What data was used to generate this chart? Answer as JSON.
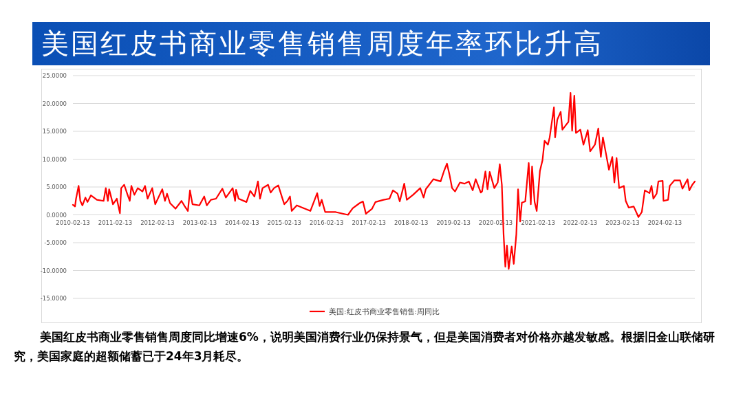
{
  "chart_data": {
    "type": "line",
    "title": "美国红皮书商业零售销售周度年率环比升高",
    "annotations": [
      "美国红皮书商业零售销售周度同比增速6%，说明美国消费行业仍保持景气，但是美国消费者对价格亦越发敏感。根据旧金山联储研究，美国家庭的超额储蓄已于24年3月耗尽。"
    ],
    "xlim": [
      "2010-02-13",
      "2024-10-29"
    ],
    "xticks": [
      "2010-02-13",
      "2011-02-13",
      "2012-02-13",
      "2013-02-13",
      "2014-02-13",
      "2015-02-13",
      "2016-02-13",
      "2017-02-13",
      "2018-02-13",
      "2019-02-13",
      "2020-02-13",
      "2021-02-13",
      "2022-02-13",
      "2023-02-13",
      "2024-02-13"
    ],
    "ylim": [
      -15,
      25
    ],
    "yticks": [
      {
        "value": -15,
        "label": "-15.0000"
      },
      {
        "value": -10,
        "label": "-10.0000"
      },
      {
        "value": -5,
        "label": "-5.0000"
      },
      {
        "value": 0,
        "label": "0.0000"
      },
      {
        "value": 5,
        "label": "5.0000"
      },
      {
        "value": 10,
        "label": "10.0000"
      },
      {
        "value": 15,
        "label": "15.0000"
      },
      {
        "value": 20,
        "label": "20.0000"
      },
      {
        "value": 25,
        "label": "25.0000"
      }
    ],
    "grid": "y",
    "legend": "bottom",
    "marker": "none",
    "line_style": "solid",
    "series": [
      {
        "name": "美国:红皮书商业零售销售:周同比",
        "color": "#ff0000",
        "x": [
          "2010-02-13",
          "2010-03-03",
          "2010-03-12",
          "2010-04-03",
          "2010-04-18",
          "2010-05-06",
          "2010-06-01",
          "2010-06-19",
          "2010-07-18",
          "2010-09-08",
          "2010-11-05",
          "2010-11-24",
          "2010-12-12",
          "2010-12-23",
          "2011-01-25",
          "2011-02-27",
          "2011-03-26",
          "2011-04-06",
          "2011-05-02",
          "2011-05-31",
          "2011-06-19",
          "2011-07-03",
          "2011-07-29",
          "2011-08-27",
          "2011-10-07",
          "2011-10-29",
          "2011-11-20",
          "2011-12-30",
          "2012-01-25",
          "2012-03-26",
          "2012-04-18",
          "2012-05-06",
          "2012-06-01",
          "2012-07-18",
          "2012-09-08",
          "2012-10-07",
          "2012-11-02",
          "2012-11-20",
          "2012-12-12",
          "2013-02-09",
          "2013-03-23",
          "2013-04-14",
          "2013-05-20",
          "2013-07-03",
          "2013-08-27",
          "2013-09-26",
          "2013-11-24",
          "2013-12-15",
          "2013-12-23",
          "2014-01-14",
          "2014-03-23",
          "2014-04-25",
          "2014-05-31",
          "2014-06-30",
          "2014-07-18",
          "2014-08-09",
          "2014-09-26",
          "2014-10-18",
          "2014-11-16",
          "2014-12-23",
          "2015-01-25",
          "2015-02-13",
          "2015-03-12",
          "2015-04-03",
          "2015-04-18",
          "2015-06-01",
          "2015-07-18",
          "2015-09-26",
          "2015-11-24",
          "2015-12-15",
          "2016-01-02",
          "2016-02-01",
          "2016-05-02",
          "2016-08-16",
          "2016-09-26",
          "2016-11-24",
          "2016-12-23",
          "2017-01-18",
          "2017-03-12",
          "2017-04-10",
          "2017-06-19",
          "2017-08-09",
          "2017-09-08",
          "2017-10-18",
          "2017-11-06",
          "2017-12-15",
          "2018-01-06",
          "2018-03-01",
          "2018-05-02",
          "2018-05-31",
          "2018-06-19",
          "2018-08-24",
          "2018-10-25",
          "2018-11-24",
          "2018-12-19",
          "2019-01-10",
          "2019-02-01",
          "2019-02-27",
          "2019-04-10",
          "2019-05-20",
          "2019-06-26",
          "2019-07-29",
          "2019-08-24",
          "2019-10-07",
          "2019-10-18",
          "2019-11-16",
          "2019-12-04",
          "2019-12-23",
          "2020-02-01",
          "2020-03-01",
          "2020-03-19",
          "2020-04-06",
          "2020-04-21",
          "2020-05-06",
          "2020-05-20",
          "2020-06-04",
          "2020-06-30",
          "2020-07-18",
          "2020-08-09",
          "2020-08-24",
          "2020-09-11",
          "2020-09-26",
          "2020-10-25",
          "2020-11-24",
          "2020-12-12",
          "2020-12-23",
          "2021-01-14",
          "2021-02-01",
          "2021-03-01",
          "2021-03-23",
          "2021-04-10",
          "2021-05-09",
          "2021-05-24",
          "2021-06-30",
          "2021-07-10",
          "2021-07-29",
          "2021-08-27",
          "2021-09-11",
          "2021-10-07",
          "2021-11-02",
          "2021-11-20",
          "2021-12-04",
          "2021-12-23",
          "2022-01-06",
          "2022-02-13",
          "2022-03-12",
          "2022-04-03",
          "2022-04-18",
          "2022-05-09",
          "2022-06-19",
          "2022-07-18",
          "2022-08-09",
          "2022-08-27",
          "2022-09-26",
          "2022-10-18",
          "2022-11-16",
          "2022-12-04",
          "2022-12-23",
          "2023-01-14",
          "2023-02-24",
          "2023-03-12",
          "2023-04-07",
          "2023-05-20",
          "2023-06-30",
          "2023-07-29",
          "2023-08-24",
          "2023-10-03",
          "2023-10-21",
          "2023-11-06",
          "2023-12-04",
          "2023-12-19",
          "2024-01-25",
          "2024-02-01",
          "2024-03-12",
          "2024-03-26",
          "2024-05-06",
          "2024-06-23",
          "2024-07-14",
          "2024-08-27",
          "2024-09-11",
          "2024-10-07",
          "2024-10-29"
        ],
        "values": [
          1.8,
          1.5,
          2.9,
          5.2,
          2.5,
          1.7,
          3.1,
          2.3,
          3.5,
          2.7,
          2.5,
          4.8,
          2.5,
          4.6,
          1.9,
          2.9,
          0.3,
          4.8,
          5.4,
          3.6,
          2.5,
          5.2,
          3.6,
          4.8,
          4.2,
          5.2,
          2.9,
          4.8,
          1.9,
          4.6,
          2.5,
          3.8,
          2.1,
          1.1,
          2.5,
          1.5,
          0.7,
          4.4,
          1.9,
          1.7,
          3.3,
          1.7,
          2.7,
          2.9,
          4.7,
          3.1,
          4.8,
          2.5,
          4.5,
          2.9,
          2.3,
          4.3,
          3.3,
          6.0,
          2.9,
          4.8,
          5.4,
          4.0,
          4.8,
          5.3,
          3.1,
          1.9,
          2.5,
          3.3,
          0.7,
          1.7,
          1.3,
          0.7,
          3.9,
          1.6,
          2.7,
          0.5,
          0.5,
          0.0,
          1.2,
          2.1,
          2.4,
          0.2,
          1.1,
          2.3,
          2.7,
          2.9,
          4.4,
          3.8,
          2.4,
          5.6,
          2.7,
          3.6,
          4.8,
          3.1,
          4.6,
          6.4,
          6.0,
          7.9,
          9.2,
          7.2,
          4.8,
          4.2,
          5.8,
          5.6,
          6.0,
          4.4,
          6.4,
          4.0,
          4.2,
          7.8,
          4.6,
          7.7,
          4.8,
          5.8,
          9.1,
          5.4,
          -3.5,
          -9.3,
          -5.5,
          -9.7,
          -5.7,
          -8.8,
          -3.5,
          4.6,
          -1.2,
          2.2,
          2.4,
          9.3,
          1.9,
          8.7,
          2.3,
          0.7,
          7.9,
          9.8,
          13.3,
          12.6,
          13.9,
          19.3,
          13.9,
          17.1,
          18.5,
          15.3,
          16.0,
          16.7,
          21.9,
          15.1,
          21.4,
          14.7,
          15.3,
          12.6,
          14.1,
          15.2,
          11.4,
          12.6,
          15.5,
          10.4,
          13.9,
          10.6,
          8.1,
          10.4,
          5.8,
          10.2,
          4.8,
          5.2,
          2.5,
          1.3,
          1.5,
          -0.4,
          0.5,
          4.4,
          3.9,
          5.2,
          2.9,
          3.8,
          6.0,
          6.1,
          2.5,
          2.7,
          5.2,
          6.2,
          6.2,
          4.7,
          6.4,
          4.4,
          5.4,
          6.0
        ]
      }
    ]
  }
}
